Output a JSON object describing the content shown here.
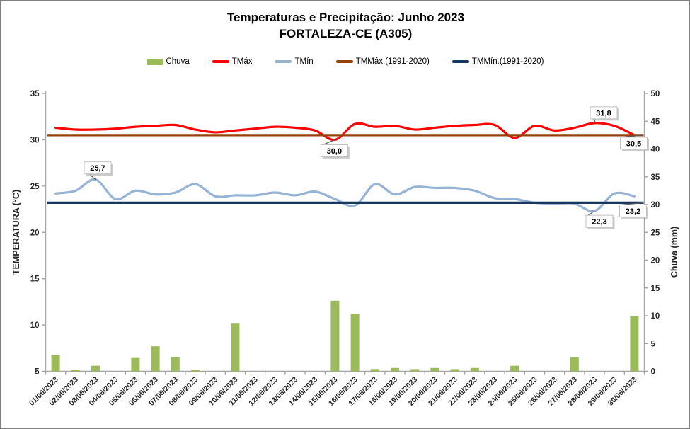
{
  "chart_data": {
    "type": "bar+line combo",
    "title": "Temperaturas e Precipitação: Junho 2023",
    "subtitle": "FORTALEZA-CE (A305)",
    "ylabel_left": "TEMPERATURA (°C)",
    "ylabel_right": "Chuva (mm)",
    "ylim_left": [
      5,
      35
    ],
    "ylim_right": [
      0,
      50
    ],
    "ytick_step": 5,
    "grid": false,
    "legend_position": "top",
    "categories": [
      "01/06/2023",
      "02/06/2023",
      "03/06/2023",
      "04/06/2023",
      "05/06/2023",
      "06/06/2023",
      "07/06/2023",
      "08/06/2023",
      "09/06/2023",
      "10/06/2023",
      "11/06/2023",
      "12/06/2023",
      "13/06/2023",
      "14/06/2023",
      "15/06/2023",
      "16/06/2023",
      "17/06/2023",
      "18/06/2023",
      "19/06/2023",
      "20/06/2023",
      "21/06/2023",
      "22/06/2023",
      "23/06/2023",
      "24/06/2023",
      "25/06/2023",
      "26/06/2023",
      "27/06/2023",
      "28/06/2023",
      "29/06/2023",
      "30/06/2023"
    ],
    "series": [
      {
        "name": "Chuva",
        "type": "bar",
        "axis": "right",
        "color": "#9BBB59",
        "values": [
          2.9,
          0.2,
          1.0,
          0,
          2.4,
          4.5,
          2.6,
          0.2,
          0,
          8.7,
          0,
          0,
          0,
          0,
          12.7,
          10.3,
          0.4,
          0.6,
          0.4,
          0.6,
          0.4,
          0.6,
          0,
          1.0,
          0,
          0,
          2.6,
          0,
          0,
          9.9
        ]
      },
      {
        "name": "TMáx",
        "type": "line",
        "axis": "left",
        "color": "#FF0000",
        "values": [
          31.3,
          31.1,
          31.1,
          31.2,
          31.4,
          31.5,
          31.6,
          31.1,
          30.8,
          31.0,
          31.2,
          31.4,
          31.3,
          31.0,
          30.0,
          31.7,
          31.4,
          31.5,
          31.1,
          31.3,
          31.5,
          31.6,
          31.6,
          30.2,
          31.5,
          31.0,
          31.3,
          31.8,
          31.5,
          30.5
        ]
      },
      {
        "name": "TMín",
        "type": "line",
        "axis": "left",
        "color": "#95B3D7",
        "values": [
          24.2,
          24.5,
          25.7,
          23.6,
          24.5,
          24.1,
          24.3,
          25.2,
          23.9,
          24.0,
          24.0,
          24.3,
          24.0,
          24.4,
          23.6,
          22.9,
          25.2,
          24.1,
          24.9,
          24.8,
          24.8,
          24.5,
          23.7,
          23.6,
          23.2,
          23.1,
          23.1,
          22.3,
          24.2,
          23.9
        ]
      },
      {
        "name": "TMMáx.(1991-2020)",
        "type": "refline",
        "axis": "left",
        "color": "#974205",
        "value": 30.5
      },
      {
        "name": "TMMín.(1991-2020)",
        "type": "refline",
        "axis": "left",
        "color": "#17375D",
        "value": 23.2
      }
    ],
    "annotations": [
      {
        "label": "25,7",
        "series": "TMín",
        "day": 3,
        "value": 25.7
      },
      {
        "label": "30,0",
        "series": "TMáx",
        "day": 15,
        "value": 30.0
      },
      {
        "label": "31,8",
        "series": "TMáx",
        "day": 28,
        "value": 31.8
      },
      {
        "label": "30,5",
        "series": "TMMáx.(1991-2020)",
        "day": 30,
        "value": 30.5
      },
      {
        "label": "22,3",
        "series": "TMín",
        "day": 28,
        "value": 22.3
      },
      {
        "label": "23,2",
        "series": "TMMín.(1991-2020)",
        "day": 30,
        "value": 23.2
      }
    ]
  }
}
